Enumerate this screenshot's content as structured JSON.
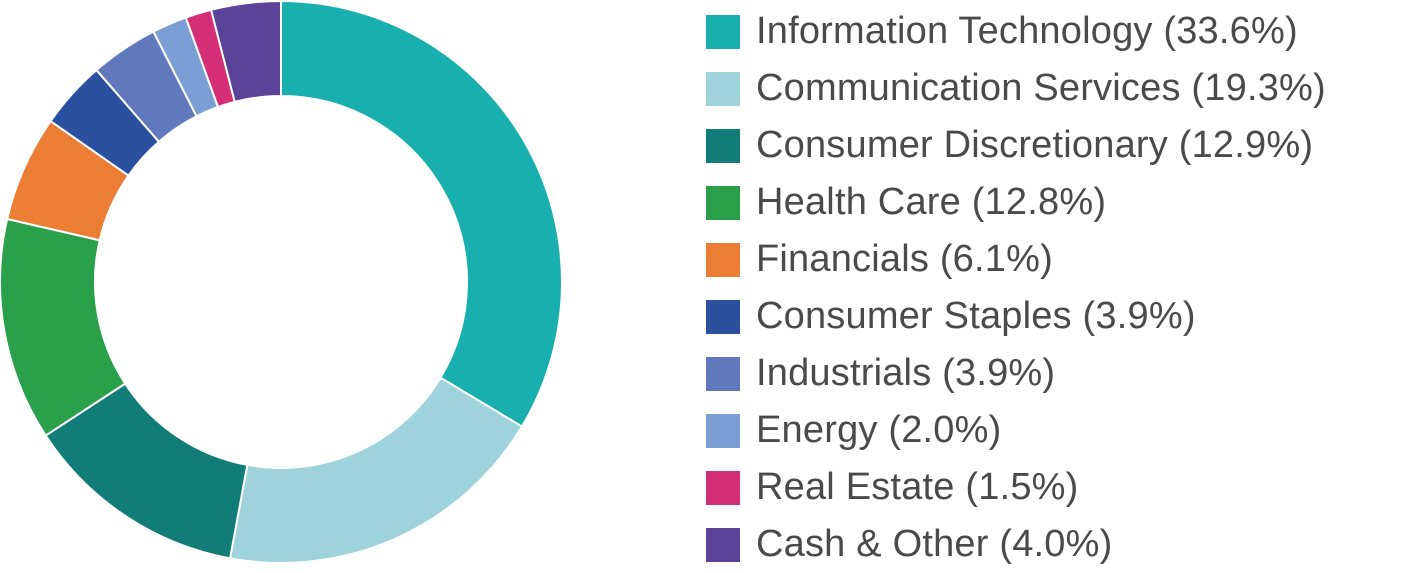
{
  "chart_data": {
    "type": "pie",
    "variant": "donut",
    "title": "",
    "legend_position": "right",
    "slices": [
      {
        "name": "Information Technology (33.6%)",
        "value": 33.6,
        "color": "#1AAFAF"
      },
      {
        "name": "Communication Services (19.3%)",
        "value": 19.3,
        "color": "#9FD3DC"
      },
      {
        "name": "Consumer Discretionary (12.9%)",
        "value": 12.9,
        "color": "#127D78"
      },
      {
        "name": "Health Care (12.8%)",
        "value": 12.8,
        "color": "#2AA04B"
      },
      {
        "name": "Financials (6.1%)",
        "value": 6.1,
        "color": "#EB7D34"
      },
      {
        "name": "Consumer Staples (3.9%)",
        "value": 3.9,
        "color": "#2B50A0"
      },
      {
        "name": "Industrials (3.9%)",
        "value": 3.9,
        "color": "#6079BD"
      },
      {
        "name": "Energy (2.0%)",
        "value": 2.0,
        "color": "#7B9FD4"
      },
      {
        "name": "Real Estate (1.5%)",
        "value": 1.5,
        "color": "#D62D77"
      },
      {
        "name": "Cash & Other (4.0%)",
        "value": 4.0,
        "color": "#5A4399"
      }
    ]
  }
}
